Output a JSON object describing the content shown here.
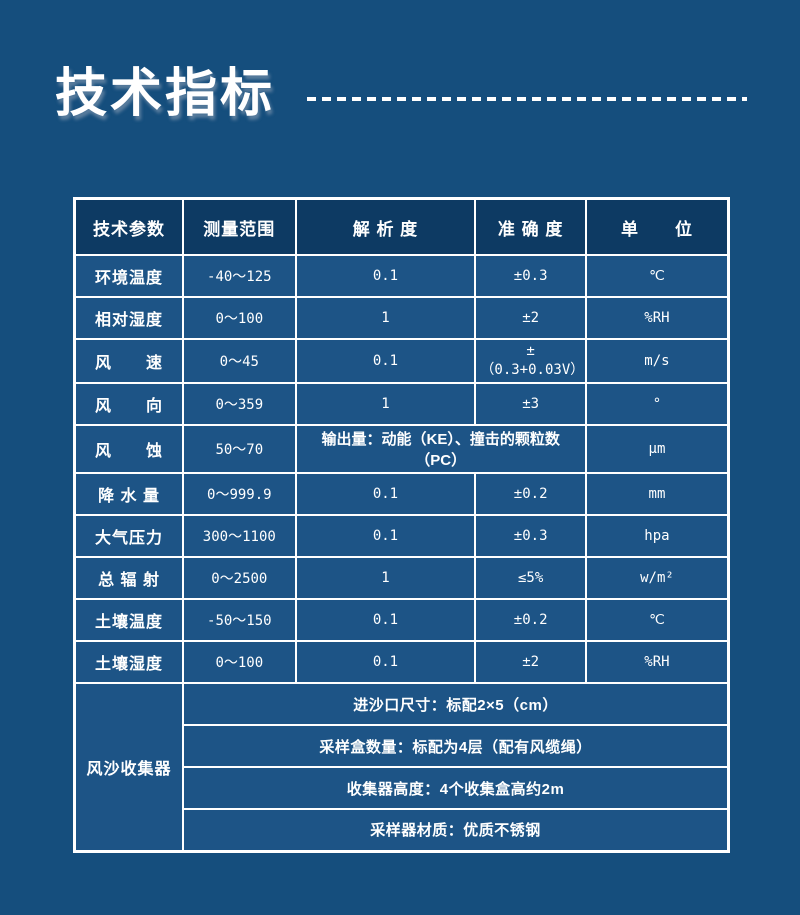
{
  "title": {
    "text": "技术指标"
  },
  "colors": {
    "page_bg": "#154E7D",
    "header_bg": "#0D3A63",
    "cell_bg": "#1D5486",
    "border": "#FFFFFF",
    "text": "#FFFFFF"
  },
  "table": {
    "headers": {
      "param": "技术参数",
      "range": "测量范围",
      "resolution": "解 析 度",
      "accuracy": "准 确 度",
      "unit": "单　　位"
    },
    "rows": [
      {
        "param": "环境温度",
        "range": "-40～125",
        "resolution": "0.1",
        "accuracy": "±0.3",
        "unit": "℃"
      },
      {
        "param": "相对湿度",
        "range": "0～100",
        "resolution": "1",
        "accuracy": "±2",
        "unit": "%RH"
      },
      {
        "param": "风　　速",
        "range": "0～45",
        "resolution": "0.1",
        "accuracy": "±\n（0.3+0.03V）",
        "unit": "m/s"
      },
      {
        "param": "风　　向",
        "range": "0～359",
        "resolution": "1",
        "accuracy": "±3",
        "unit": "°"
      },
      {
        "param": "风　　蚀",
        "range": "50～70",
        "output": "输出量：动能（KE）、撞击的颗粒数（PC）",
        "unit": "μm"
      },
      {
        "param": "降 水 量",
        "range": "0～999.9",
        "resolution": "0.1",
        "accuracy": "±0.2",
        "unit": "mm"
      },
      {
        "param": "大气压力",
        "range": "300～1100",
        "resolution": "0.1",
        "accuracy": "±0.3",
        "unit": "hpa"
      },
      {
        "param": "总 辐 射",
        "range": "0～2500",
        "resolution": "1",
        "accuracy": "≤5%",
        "unit": "w/m²"
      },
      {
        "param": "土壤温度",
        "range": "-50～150",
        "resolution": "0.1",
        "accuracy": "±0.2",
        "unit": "℃"
      },
      {
        "param": "土壤湿度",
        "range": "0～100",
        "resolution": "0.1",
        "accuracy": "±2",
        "unit": "%RH"
      }
    ],
    "collector": {
      "label": "风沙收集器",
      "items": [
        "进沙口尺寸：标配2×5（cm）",
        "采样盒数量：标配为4层（配有风缆绳）",
        "收集器高度：4个收集盒高约2m",
        "采样器材质：优质不锈钢"
      ]
    }
  }
}
